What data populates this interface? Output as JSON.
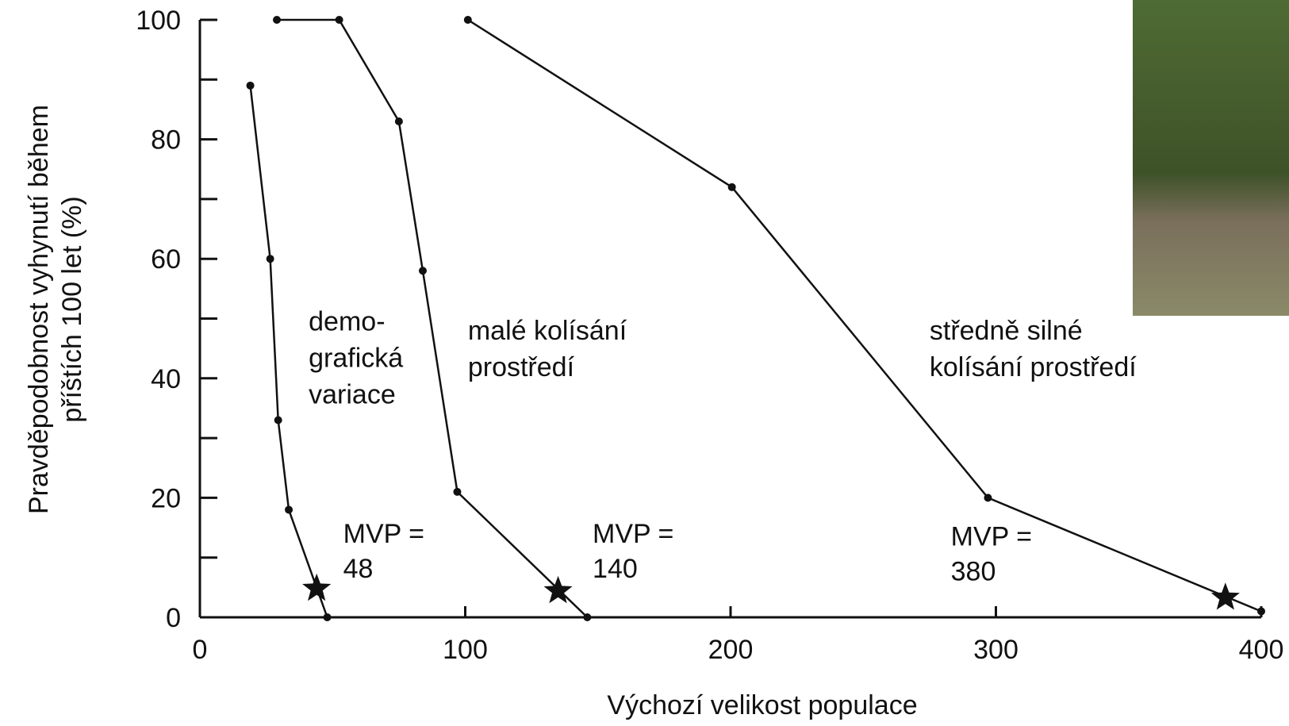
{
  "chart_data": {
    "type": "line",
    "x_label": "Výchozí velikost populace",
    "y_label": [
      "Pravděpodobnost vyhynutí během",
      "příštích 100 let (%)"
    ],
    "xlim": [
      0,
      400
    ],
    "ylim": [
      0,
      100
    ],
    "xticks": [
      0,
      100,
      200,
      300,
      400
    ],
    "yticks": [
      0,
      20,
      40,
      60,
      80,
      100
    ],
    "yminor_ticks": [
      10,
      30,
      50,
      70,
      90
    ],
    "xminor_ticks": [],
    "color": "#111111",
    "series": [
      {
        "x": [
          19,
          26.5,
          29.5,
          33.5,
          48
        ],
        "values": [
          89,
          60,
          33,
          18,
          0
        ],
        "star": {
          "x": 44,
          "y": 4.8
        },
        "label": [
          "demo-",
          "grafická",
          "variace"
        ],
        "mvp_label": [
          "MVP =",
          "48"
        ]
      },
      {
        "x": [
          29,
          52.5,
          75,
          84,
          97,
          146
        ],
        "values": [
          100,
          100,
          83,
          58,
          21,
          0
        ],
        "star": {
          "x": 135,
          "y": 4.4
        },
        "label": [
          "malé kolísání",
          "prostředí"
        ],
        "mvp_label": [
          "MVP =",
          "140"
        ]
      },
      {
        "x": [
          101,
          200.5,
          297,
          400
        ],
        "values": [
          100,
          72,
          20,
          1
        ],
        "star": {
          "x": 386.5,
          "y": 3.3
        },
        "label": [
          "středně silné",
          "kolísání prostředí"
        ],
        "mvp_label": [
          "MVP =",
          "380"
        ]
      }
    ]
  }
}
